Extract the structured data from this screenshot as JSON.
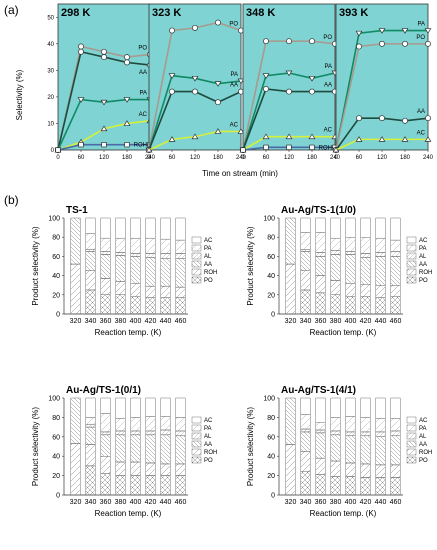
{
  "panel_a": {
    "label": "(a)",
    "ylabel": "Selectivity (%)",
    "xlabel": "Time on stream (min)",
    "colors": {
      "bg": "#7fd3d3",
      "PO": "#a89a8e",
      "PA": "#0f8a63",
      "AA": "#1f4a3e",
      "AC": "#d4f03a",
      "ROH": "#4a6aa8"
    }
  },
  "panel_b": {
    "label": "(b)",
    "ylabel": "Product selectivity (%)",
    "xlabel": "Reaction temp. (K)",
    "legend": [
      "AC",
      "PA",
      "AL",
      "AA",
      "ROH",
      "PO"
    ]
  },
  "chart_data": [
    {
      "type": "line",
      "title": "298 K",
      "x": [
        0,
        60,
        120,
        180,
        240
      ],
      "xlim": [
        0,
        240
      ],
      "ylim": [
        0,
        55
      ],
      "yticks": [
        0,
        10,
        20,
        30,
        40,
        50
      ],
      "xticks": [
        0,
        60,
        120,
        180,
        240
      ],
      "series": [
        {
          "name": "PO",
          "values": [
            0,
            39,
            37,
            35,
            36
          ]
        },
        {
          "name": "AA",
          "values": [
            0,
            37,
            35,
            33,
            32
          ]
        },
        {
          "name": "PA",
          "values": [
            0,
            19,
            18,
            19,
            19
          ]
        },
        {
          "name": "AC",
          "values": [
            0,
            3,
            8,
            10,
            11
          ]
        },
        {
          "name": "ROH",
          "values": [
            0,
            2,
            2,
            2,
            2
          ]
        }
      ]
    },
    {
      "type": "line",
      "title": "323 K",
      "x": [
        0,
        60,
        120,
        180,
        240
      ],
      "xlim": [
        0,
        240
      ],
      "ylim": [
        0,
        55
      ],
      "xticks": [
        0,
        60,
        120,
        180,
        240
      ],
      "series": [
        {
          "name": "PO",
          "values": [
            0,
            45,
            46,
            48,
            45
          ]
        },
        {
          "name": "PA",
          "values": [
            0,
            28,
            27,
            25,
            26
          ]
        },
        {
          "name": "AA",
          "values": [
            0,
            22,
            22,
            18,
            22
          ]
        },
        {
          "name": "AC",
          "values": [
            0,
            4,
            5,
            7,
            7
          ]
        }
      ]
    },
    {
      "type": "line",
      "title": "348 K",
      "x": [
        0,
        60,
        120,
        180,
        240
      ],
      "xlim": [
        0,
        240
      ],
      "ylim": [
        0,
        55
      ],
      "xticks": [
        0,
        60,
        120,
        180,
        240
      ],
      "series": [
        {
          "name": "PO",
          "values": [
            0,
            41,
            41,
            41,
            40
          ]
        },
        {
          "name": "PA",
          "values": [
            0,
            28,
            29,
            27,
            29
          ]
        },
        {
          "name": "AA",
          "values": [
            0,
            23,
            22,
            22,
            22
          ]
        },
        {
          "name": "AC",
          "values": [
            0,
            5,
            5,
            5,
            5
          ]
        },
        {
          "name": "ROH",
          "values": [
            0,
            1,
            1,
            1,
            1
          ]
        }
      ]
    },
    {
      "type": "line",
      "title": "393 K",
      "x": [
        0,
        60,
        120,
        180,
        240
      ],
      "xlim": [
        0,
        240
      ],
      "ylim": [
        0,
        55
      ],
      "xticks": [
        0,
        60,
        120,
        180,
        240
      ],
      "series": [
        {
          "name": "PA",
          "values": [
            0,
            44,
            45,
            45,
            45
          ]
        },
        {
          "name": "PO",
          "values": [
            0,
            39,
            40,
            40,
            40
          ]
        },
        {
          "name": "AA",
          "values": [
            0,
            12,
            12,
            11,
            12
          ]
        },
        {
          "name": "AC",
          "values": [
            0,
            4,
            4,
            4,
            4
          ]
        }
      ]
    },
    {
      "type": "bar",
      "title": "TS-1",
      "categories": [
        "320",
        "340",
        "360",
        "380",
        "400",
        "420",
        "440",
        "460"
      ],
      "ylim": [
        0,
        100
      ],
      "yticks": [
        0,
        20,
        40,
        60,
        80,
        100
      ],
      "series": [
        {
          "name": "PO",
          "values": [
            0,
            25,
            20,
            20,
            18,
            17,
            17,
            17
          ]
        },
        {
          "name": "ROH",
          "values": [
            52,
            20,
            17,
            14,
            14,
            12,
            12,
            11
          ]
        },
        {
          "name": "AA",
          "values": [
            48,
            20,
            25,
            27,
            28,
            30,
            29,
            30
          ]
        },
        {
          "name": "AL",
          "values": [
            0,
            2,
            3,
            3,
            3,
            4,
            5,
            5
          ]
        },
        {
          "name": "PA",
          "values": [
            0,
            17,
            14,
            15,
            16,
            16,
            15,
            14
          ]
        },
        {
          "name": "AC",
          "values": [
            0,
            16,
            21,
            21,
            21,
            21,
            22,
            23
          ]
        }
      ]
    },
    {
      "type": "bar",
      "title": "Au-Ag/TS-1(1/0)",
      "categories": [
        "320",
        "340",
        "360",
        "380",
        "400",
        "420",
        "440",
        "460"
      ],
      "ylim": [
        0,
        100
      ],
      "yticks": [
        0,
        20,
        40,
        60,
        80,
        100
      ],
      "series": [
        {
          "name": "PO",
          "values": [
            0,
            25,
            22,
            20,
            18,
            18,
            17,
            18
          ]
        },
        {
          "name": "ROH",
          "values": [
            52,
            20,
            18,
            15,
            14,
            13,
            13,
            12
          ]
        },
        {
          "name": "AA",
          "values": [
            48,
            20,
            20,
            27,
            30,
            28,
            30,
            30
          ]
        },
        {
          "name": "AL",
          "values": [
            0,
            2,
            4,
            4,
            3,
            4,
            4,
            5
          ]
        },
        {
          "name": "PA",
          "values": [
            0,
            18,
            21,
            13,
            15,
            17,
            15,
            12
          ]
        },
        {
          "name": "AC",
          "values": [
            0,
            15,
            15,
            21,
            20,
            20,
            21,
            23
          ]
        }
      ]
    },
    {
      "type": "bar",
      "title": "Au-Ag/TS-1(0/1)",
      "categories": [
        "320",
        "340",
        "360",
        "380",
        "400",
        "420",
        "440",
        "460"
      ],
      "ylim": [
        0,
        100
      ],
      "yticks": [
        0,
        20,
        40,
        60,
        80,
        100
      ],
      "series": [
        {
          "name": "PO",
          "values": [
            0,
            30,
            22,
            20,
            20,
            20,
            20,
            20
          ]
        },
        {
          "name": "ROH",
          "values": [
            53,
            22,
            18,
            14,
            14,
            13,
            12,
            12
          ]
        },
        {
          "name": "AA",
          "values": [
            47,
            18,
            22,
            28,
            28,
            29,
            30,
            29
          ]
        },
        {
          "name": "AL",
          "values": [
            0,
            3,
            3,
            4,
            4,
            4,
            5,
            5
          ]
        },
        {
          "name": "PA",
          "values": [
            0,
            7,
            19,
            13,
            14,
            15,
            14,
            14
          ]
        },
        {
          "name": "AC",
          "values": [
            0,
            20,
            16,
            21,
            20,
            19,
            19,
            20
          ]
        }
      ]
    },
    {
      "type": "bar",
      "title": "Au-Ag/TS-1(4/1)",
      "categories": [
        "320",
        "340",
        "360",
        "380",
        "400",
        "420",
        "440",
        "460"
      ],
      "ylim": [
        0,
        100
      ],
      "yticks": [
        0,
        20,
        40,
        60,
        80,
        100
      ],
      "series": [
        {
          "name": "PO",
          "values": [
            0,
            24,
            21,
            19,
            19,
            18,
            18,
            18
          ]
        },
        {
          "name": "ROH",
          "values": [
            52,
            21,
            17,
            16,
            14,
            14,
            13,
            13
          ]
        },
        {
          "name": "AA",
          "values": [
            48,
            20,
            26,
            27,
            28,
            29,
            29,
            30
          ]
        },
        {
          "name": "AL",
          "values": [
            0,
            3,
            3,
            4,
            4,
            4,
            5,
            5
          ]
        },
        {
          "name": "PA",
          "values": [
            0,
            15,
            8,
            14,
            16,
            15,
            14,
            13
          ]
        },
        {
          "name": "AC",
          "values": [
            0,
            17,
            25,
            20,
            19,
            20,
            21,
            21
          ]
        }
      ]
    }
  ]
}
